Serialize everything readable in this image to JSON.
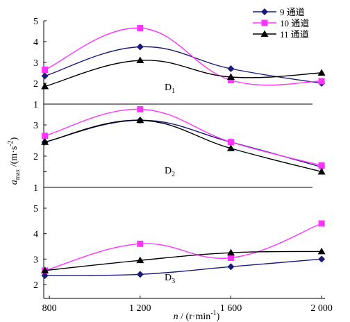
{
  "chart_data": {
    "type": "line",
    "x_tick_labels": [
      "800",
      "1 200",
      "1 600",
      "2 000"
    ],
    "x_ticks": [
      800,
      1200,
      1600,
      2000
    ],
    "xlim": [
      775,
      2015
    ],
    "xlabel": {
      "var": "n",
      "unit": " / (r·min",
      "sup": "-1",
      "close": ")"
    },
    "ylabel": {
      "var": "a",
      "sub": "max",
      "unit": " /(m·s",
      "sup": "-2",
      "close": ")"
    },
    "legend": [
      {
        "label": "9 通道",
        "color": "#1a1a7a",
        "marker": "diamond"
      },
      {
        "label": "10 通道",
        "color": "#ff33ff",
        "marker": "square"
      },
      {
        "label": "11 通道",
        "color": "#000000",
        "marker": "triangle"
      }
    ],
    "panels": [
      {
        "label": "D",
        "label_sub": "1",
        "ylim": [
          1,
          5
        ],
        "y_ticks": [
          1,
          2,
          3,
          4,
          5
        ],
        "y_tick_labels": [
          "1",
          "2",
          "3",
          "4",
          "5"
        ],
        "series": [
          {
            "x": [
              780,
              1200,
              1600,
              2000
            ],
            "y": [
              2.35,
              3.75,
              2.7,
              2.0
            ]
          },
          {
            "x": [
              780,
              1200,
              1600,
              2000
            ],
            "y": [
              2.65,
              4.65,
              2.15,
              2.1
            ]
          },
          {
            "x": [
              780,
              1200,
              1600,
              2000
            ],
            "y": [
              1.85,
              3.1,
              2.3,
              2.5
            ]
          }
        ]
      },
      {
        "label": "D",
        "label_sub": "2",
        "ylim": [
          1,
          3
        ],
        "y_ticks": [
          1,
          1.5,
          2,
          2.5,
          3
        ],
        "y_tick_labels": [
          "1",
          "",
          "2",
          "",
          "3"
        ],
        "series": [
          {
            "x": [
              780,
              1200,
              1600,
              2000
            ],
            "y": [
              2.45,
              3.15,
              2.45,
              1.65
            ]
          },
          {
            "x": [
              780,
              1200,
              1600,
              2000
            ],
            "y": [
              2.65,
              3.5,
              2.45,
              1.7
            ]
          },
          {
            "x": [
              780,
              1200,
              1600,
              2000
            ],
            "y": [
              2.45,
              3.15,
              2.25,
              1.5
            ]
          }
        ]
      },
      {
        "label": "D",
        "label_sub": "3",
        "ylim": [
          1,
          5
        ],
        "y_ticks": [
          2,
          3,
          4,
          5
        ],
        "y_tick_labels": [
          "2",
          "3",
          "4",
          "5"
        ],
        "series": [
          {
            "x": [
              780,
              1200,
              1600,
              2000
            ],
            "y": [
              2.35,
              2.4,
              2.7,
              3.0
            ]
          },
          {
            "x": [
              780,
              1200,
              1600,
              2000
            ],
            "y": [
              2.55,
              3.6,
              3.05,
              4.4
            ]
          },
          {
            "x": [
              780,
              1200,
              1600,
              2000
            ],
            "y": [
              2.55,
              2.95,
              3.25,
              3.3
            ]
          }
        ]
      }
    ]
  }
}
